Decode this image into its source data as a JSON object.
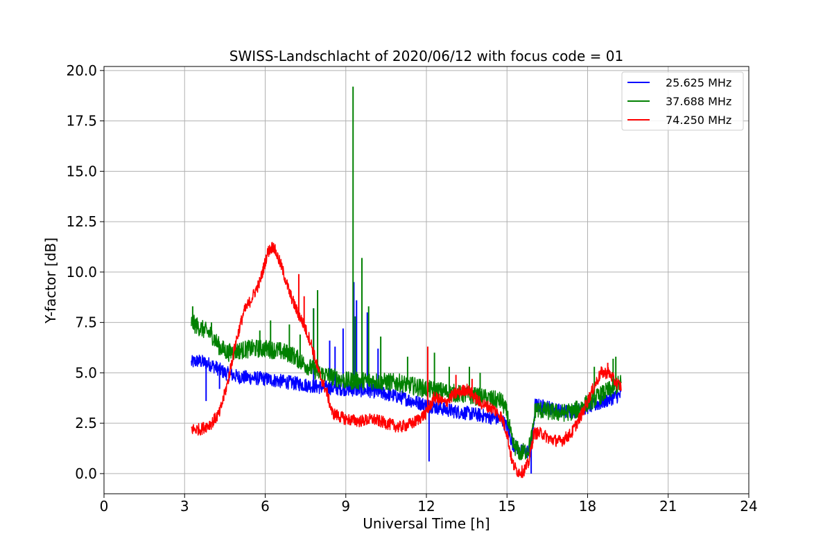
{
  "chart_data": {
    "type": "line",
    "title": "SWISS-Landschlacht of 2020/06/12 with focus code = 01",
    "xlabel": "Universal Time [h]",
    "ylabel": "Y-factor [dB]",
    "xlim": [
      0,
      24
    ],
    "ylim": [
      -1.0,
      20.2
    ],
    "x_ticks": [
      0,
      3,
      6,
      9,
      12,
      15,
      18,
      21,
      24
    ],
    "x_tick_labels": [
      "0",
      "3",
      "6",
      "9",
      "12",
      "15",
      "18",
      "21",
      "24"
    ],
    "y_ticks": [
      0,
      2.5,
      5,
      7.5,
      10,
      12.5,
      15,
      17.5,
      20
    ],
    "y_tick_labels": [
      "0.0",
      "2.5",
      "5.0",
      "7.5",
      "10.0",
      "12.5",
      "15.0",
      "17.5",
      "20.0"
    ],
    "grid": true,
    "legend_position": "top-right",
    "series": [
      {
        "name": "25.625 MHz",
        "color": "#0000ff",
        "noise": 0.35,
        "points": [
          [
            3.25,
            5.5
          ],
          [
            3.5,
            5.6
          ],
          [
            4.0,
            5.4
          ],
          [
            4.5,
            5.0
          ],
          [
            5.0,
            4.8
          ],
          [
            6.0,
            4.7
          ],
          [
            7.0,
            4.5
          ],
          [
            8.0,
            4.3
          ],
          [
            9.0,
            4.2
          ],
          [
            10.0,
            4.1
          ],
          [
            11.0,
            3.8
          ],
          [
            12.0,
            3.4
          ],
          [
            13.0,
            3.1
          ],
          [
            14.0,
            2.9
          ],
          [
            14.8,
            2.7
          ],
          [
            15.0,
            2.3
          ],
          [
            15.2,
            1.5
          ],
          [
            15.5,
            1.1
          ],
          [
            15.8,
            1.1
          ],
          [
            15.95,
            1.8
          ],
          [
            16.05,
            3.4
          ],
          [
            16.5,
            3.3
          ],
          [
            17.0,
            3.1
          ],
          [
            17.5,
            3.1
          ],
          [
            18.0,
            3.3
          ],
          [
            18.5,
            3.5
          ],
          [
            19.0,
            3.8
          ],
          [
            19.25,
            3.9
          ]
        ],
        "spikes": [
          [
            3.8,
            3.6
          ],
          [
            4.3,
            4.2
          ],
          [
            7.8,
            8.2
          ],
          [
            8.4,
            6.6
          ],
          [
            8.6,
            6.3
          ],
          [
            8.9,
            7.2
          ],
          [
            9.3,
            9.5
          ],
          [
            9.4,
            8.6
          ],
          [
            9.6,
            7.2
          ],
          [
            9.8,
            8.0
          ],
          [
            10.2,
            6.2
          ],
          [
            12.1,
            0.6
          ],
          [
            15.9,
            0.0
          ]
        ]
      },
      {
        "name": "37.688 MHz",
        "color": "#008000",
        "noise": 0.45,
        "points": [
          [
            3.25,
            7.5
          ],
          [
            3.5,
            7.3
          ],
          [
            4.0,
            6.9
          ],
          [
            4.3,
            6.3
          ],
          [
            4.6,
            6.0
          ],
          [
            5.0,
            6.1
          ],
          [
            5.5,
            6.2
          ],
          [
            6.0,
            6.2
          ],
          [
            6.5,
            6.1
          ],
          [
            7.0,
            5.9
          ],
          [
            7.5,
            5.4
          ],
          [
            8.0,
            5.0
          ],
          [
            8.5,
            4.8
          ],
          [
            9.0,
            4.6
          ],
          [
            10.0,
            4.6
          ],
          [
            11.0,
            4.5
          ],
          [
            12.0,
            4.2
          ],
          [
            13.0,
            4.0
          ],
          [
            14.0,
            3.8
          ],
          [
            14.8,
            3.6
          ],
          [
            15.0,
            3.0
          ],
          [
            15.2,
            1.5
          ],
          [
            15.5,
            1.0
          ],
          [
            15.8,
            1.2
          ],
          [
            15.95,
            2.0
          ],
          [
            16.05,
            3.2
          ],
          [
            16.5,
            3.1
          ],
          [
            17.0,
            3.0
          ],
          [
            17.5,
            3.1
          ],
          [
            18.0,
            3.5
          ],
          [
            18.5,
            3.9
          ],
          [
            19.0,
            4.3
          ],
          [
            19.25,
            4.5
          ]
        ],
        "spikes": [
          [
            3.3,
            8.3
          ],
          [
            4.0,
            7.5
          ],
          [
            5.8,
            7.1
          ],
          [
            6.2,
            7.6
          ],
          [
            6.9,
            7.4
          ],
          [
            7.3,
            6.9
          ],
          [
            7.8,
            8.2
          ],
          [
            7.95,
            9.1
          ],
          [
            9.27,
            19.2
          ],
          [
            9.35,
            7.8
          ],
          [
            9.6,
            10.7
          ],
          [
            9.85,
            8.3
          ],
          [
            10.3,
            6.8
          ],
          [
            11.3,
            5.8
          ],
          [
            12.3,
            6.0
          ],
          [
            12.85,
            5.3
          ],
          [
            13.6,
            5.3
          ],
          [
            14.0,
            5.0
          ],
          [
            18.25,
            5.3
          ],
          [
            18.95,
            5.7
          ],
          [
            19.05,
            5.8
          ]
        ]
      },
      {
        "name": "74.250 MHz",
        "color": "#ff0000",
        "noise": 0.3,
        "points": [
          [
            3.25,
            2.2
          ],
          [
            3.6,
            2.2
          ],
          [
            4.0,
            2.5
          ],
          [
            4.3,
            3.0
          ],
          [
            4.6,
            4.5
          ],
          [
            4.9,
            6.5
          ],
          [
            5.2,
            8.0
          ],
          [
            5.5,
            8.7
          ],
          [
            5.8,
            9.5
          ],
          [
            6.1,
            11.0
          ],
          [
            6.3,
            11.3
          ],
          [
            6.6,
            10.3
          ],
          [
            6.9,
            9.0
          ],
          [
            7.2,
            8.0
          ],
          [
            7.4,
            7.5
          ],
          [
            7.7,
            6.5
          ],
          [
            8.0,
            5.0
          ],
          [
            8.3,
            4.0
          ],
          [
            8.5,
            3.0
          ],
          [
            9.0,
            2.7
          ],
          [
            9.5,
            2.6
          ],
          [
            10.0,
            2.7
          ],
          [
            10.5,
            2.5
          ],
          [
            11.0,
            2.3
          ],
          [
            11.5,
            2.5
          ],
          [
            12.0,
            3.0
          ],
          [
            12.3,
            3.8
          ],
          [
            12.7,
            3.5
          ],
          [
            13.0,
            3.9
          ],
          [
            13.5,
            4.2
          ],
          [
            14.0,
            3.5
          ],
          [
            14.5,
            3.2
          ],
          [
            14.8,
            2.8
          ],
          [
            15.0,
            2.0
          ],
          [
            15.2,
            0.5
          ],
          [
            15.4,
            0.1
          ],
          [
            15.6,
            0.1
          ],
          [
            15.8,
            0.5
          ],
          [
            16.0,
            2.0
          ],
          [
            16.3,
            2.0
          ],
          [
            16.6,
            1.7
          ],
          [
            17.0,
            1.6
          ],
          [
            17.4,
            2.0
          ],
          [
            17.8,
            3.0
          ],
          [
            18.2,
            4.2
          ],
          [
            18.5,
            5.0
          ],
          [
            18.8,
            5.0
          ],
          [
            19.0,
            4.6
          ],
          [
            19.25,
            4.3
          ]
        ],
        "spikes": [
          [
            7.25,
            9.9
          ],
          [
            7.45,
            8.8
          ],
          [
            12.05,
            6.3
          ],
          [
            13.1,
            4.9
          ],
          [
            13.7,
            4.7
          ],
          [
            18.75,
            5.5
          ]
        ]
      }
    ]
  }
}
